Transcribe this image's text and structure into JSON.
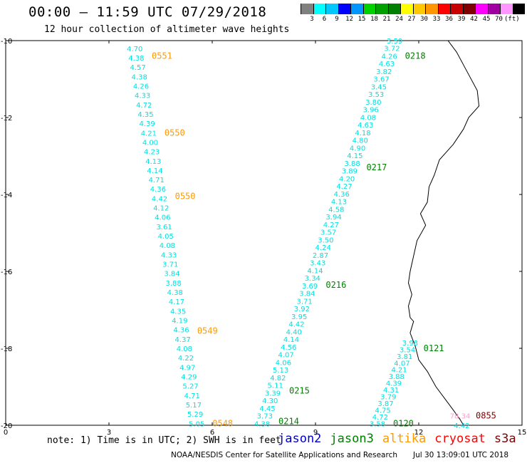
{
  "header": {
    "title": "00:00 – 11:59 UTC 07/29/2018",
    "subtitle": "12 hour collection of altimeter wave heights"
  },
  "color_scale": {
    "unit": "(ft)",
    "colors": [
      "#808080",
      "#00ffff",
      "#00c8ff",
      "#0000ff",
      "#0096ff",
      "#00d200",
      "#00a000",
      "#008000",
      "#ffff00",
      "#ffc800",
      "#ff9600",
      "#ff0000",
      "#c80000",
      "#800000",
      "#ff00ff",
      "#a000a0",
      "#ff96ff",
      "#000000"
    ],
    "labels": [
      "3",
      "6",
      "9",
      "12",
      "15",
      "18",
      "21",
      "24",
      "27",
      "30",
      "33",
      "36",
      "39",
      "42",
      "45",
      "70"
    ]
  },
  "footer": {
    "note": "note: 1) Time is in UTC; 2) SWH is in feet",
    "source": "NOAA/NESDIS Center for Satellite Applications and Research",
    "timestamp": "Jul 30 13:09:01 UTC 2018",
    "satellites": [
      {
        "name": "jason2",
        "color": "#0000cc"
      },
      {
        "name": "jason3",
        "color": "#008000"
      },
      {
        "name": "altika",
        "color": "#ff9900"
      },
      {
        "name": "cryosat",
        "color": "#ff0000"
      },
      {
        "name": "s3a",
        "color": "#800000"
      }
    ]
  },
  "map": {
    "x_axis": {
      "min": 0,
      "max": 15,
      "ticks": [
        "0",
        "3",
        "6",
        "9",
        "12",
        "15"
      ]
    },
    "y_axis": {
      "min": -20,
      "max": -10,
      "ticks": [
        "-10",
        "-12",
        "-14",
        "-16",
        "-18",
        "-20"
      ]
    },
    "tracks": [
      {
        "id": "altika-west",
        "value_color": "#00e0e0",
        "x_start": 3.75,
        "y_start": -10.2,
        "x_end": 5.55,
        "y_end": -19.95,
        "values": [
          "4.70",
          "4.38",
          "4.57",
          "4.38",
          "4.26",
          "4.33",
          "4.72",
          "4.35",
          "4.39",
          "4.21",
          "4.00",
          "4.23",
          "4.13",
          "4.14",
          "4.71",
          "4.36",
          "4.42",
          "4.12",
          "4.06",
          "3.61",
          "4.05",
          "4.08",
          "4.33",
          "3.71",
          "3.84",
          "3.88",
          "4.38",
          "4.17",
          "4.35",
          "4.19",
          "4.36",
          "4.37",
          "4.08",
          "4.22",
          "4.97",
          "4.29",
          "5.27",
          "4.71",
          "5.17",
          "5.29",
          "5.05"
        ],
        "time_labels": [
          {
            "text": "0551",
            "lat": -10.4,
            "color": "#ff9900"
          },
          {
            "text": "0550",
            "lat": -12.4,
            "color": "#ff9900"
          },
          {
            "text": "0550",
            "lat": -14.05,
            "color": "#ff9900"
          },
          {
            "text": "0549",
            "lat": -17.55,
            "color": "#ff9900"
          },
          {
            "text": "0548",
            "lat": -19.95,
            "color": "#ff9900"
          }
        ]
      },
      {
        "id": "jason3-central",
        "value_color": "#00e0e0",
        "x_start": 11.3,
        "y_start": -10.0,
        "x_end": 7.45,
        "y_end": -19.95,
        "values": [
          "3.59",
          "3.72",
          "4.26",
          "4.63",
          "3.82",
          "3.67",
          "3.45",
          "3.53",
          "3.80",
          "3.96",
          "4.08",
          "4.63",
          "4.18",
          "4.80",
          "4.90",
          "4.15",
          "3.88",
          "3.89",
          "4.20",
          "4.27",
          "4.36",
          "4.13",
          "4.58",
          "3.94",
          "4.27",
          "3.57",
          "3.50",
          "4.24",
          "2.87",
          "3.43",
          "4.14",
          "3.34",
          "3.69",
          "3.84",
          "3.71",
          "3.92",
          "3.95",
          "4.42",
          "4.40",
          "4.14",
          "4.56",
          "4.07",
          "4.06",
          "5.13",
          "4.82",
          "5.11",
          "3.39",
          "4.30",
          "4.45",
          "3.73",
          "4.38"
        ],
        "time_labels": [
          {
            "text": "0218",
            "lat": -10.4,
            "color": "#008000"
          },
          {
            "text": "0217",
            "lat": -13.3,
            "color": "#008000"
          },
          {
            "text": "0216",
            "lat": -16.35,
            "color": "#008000"
          },
          {
            "text": "0215",
            "lat": -19.1,
            "color": "#008000"
          },
          {
            "text": "0214",
            "lat": -19.9,
            "color": "#008000"
          }
        ]
      },
      {
        "id": "jason3-east",
        "value_color": "#00e0e0",
        "x_start": 11.75,
        "y_start": -17.85,
        "x_end": 10.8,
        "y_end": -19.95,
        "values": [
          "3.98",
          "3.54",
          "3.81",
          "4.07",
          "4.21",
          "3.88",
          "4.39",
          "4.31",
          "3.79",
          "3.87",
          "4.75",
          "4.72",
          "3.58"
        ],
        "time_labels": [
          {
            "text": "0121",
            "lat": -18.0,
            "color": "#008000"
          },
          {
            "text": "0120",
            "lat": -19.95,
            "color": "#008000"
          }
        ]
      },
      {
        "id": "s3a-point",
        "value_color": "#ff9ccf",
        "x_start": 13.2,
        "y_start": -19.75,
        "x_end": 13.2,
        "y_end": -19.75,
        "values": [
          "78.34"
        ],
        "time_labels": [
          {
            "text": "0855",
            "lat": -19.75,
            "color": "#800000"
          }
        ]
      },
      {
        "id": "extra-point",
        "value_color": "#00e0e0",
        "x_start": 13.25,
        "y_start": -20.0,
        "x_end": 13.25,
        "y_end": -20.0,
        "values": [
          "4.42"
        ],
        "time_labels": []
      }
    ]
  }
}
